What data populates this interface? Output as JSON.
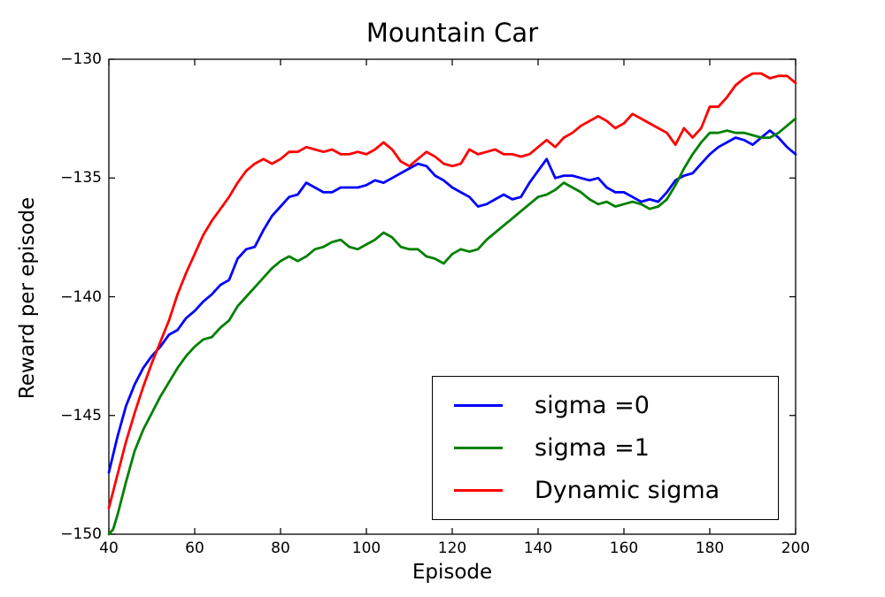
{
  "chart_data": {
    "type": "line",
    "title": "Mountain Car",
    "xlabel": "Episode",
    "ylabel": "Reward per episode",
    "xlim": [
      40,
      200
    ],
    "ylim": [
      -150,
      -130
    ],
    "xticks": [
      40,
      60,
      80,
      100,
      120,
      140,
      160,
      180,
      200
    ],
    "xtick_labels": [
      "40",
      "60",
      "80",
      "100",
      "120",
      "140",
      "160",
      "180",
      "200"
    ],
    "yticks": [
      -130,
      -135,
      -140,
      -145,
      -150
    ],
    "ytick_labels": [
      "−130",
      "−135",
      "−140",
      "−145",
      "−150"
    ],
    "grid": false,
    "legend_position": "lower-right-inside",
    "axis_color": "#000000",
    "background_color": "#ffffff",
    "series": [
      {
        "name": "sigma =0",
        "color": "#0000ff",
        "points": [
          [
            40,
            -147.4
          ],
          [
            42,
            -145.9
          ],
          [
            44,
            -144.6
          ],
          [
            46,
            -143.7
          ],
          [
            48,
            -143.0
          ],
          [
            50,
            -142.5
          ],
          [
            52,
            -142.1
          ],
          [
            54,
            -141.6
          ],
          [
            56,
            -141.4
          ],
          [
            58,
            -140.9
          ],
          [
            60,
            -140.6
          ],
          [
            62,
            -140.2
          ],
          [
            64,
            -139.9
          ],
          [
            66,
            -139.5
          ],
          [
            68,
            -139.3
          ],
          [
            70,
            -138.4
          ],
          [
            72,
            -138.0
          ],
          [
            74,
            -137.9
          ],
          [
            76,
            -137.2
          ],
          [
            78,
            -136.6
          ],
          [
            80,
            -136.2
          ],
          [
            82,
            -135.8
          ],
          [
            84,
            -135.7
          ],
          [
            86,
            -135.2
          ],
          [
            88,
            -135.4
          ],
          [
            90,
            -135.6
          ],
          [
            92,
            -135.6
          ],
          [
            94,
            -135.4
          ],
          [
            96,
            -135.4
          ],
          [
            98,
            -135.4
          ],
          [
            100,
            -135.3
          ],
          [
            102,
            -135.1
          ],
          [
            104,
            -135.2
          ],
          [
            106,
            -135.0
          ],
          [
            108,
            -134.8
          ],
          [
            110,
            -134.6
          ],
          [
            112,
            -134.4
          ],
          [
            114,
            -134.5
          ],
          [
            116,
            -134.9
          ],
          [
            118,
            -135.1
          ],
          [
            120,
            -135.4
          ],
          [
            122,
            -135.6
          ],
          [
            124,
            -135.8
          ],
          [
            126,
            -136.2
          ],
          [
            128,
            -136.1
          ],
          [
            130,
            -135.9
          ],
          [
            132,
            -135.7
          ],
          [
            134,
            -135.9
          ],
          [
            136,
            -135.8
          ],
          [
            138,
            -135.2
          ],
          [
            140,
            -134.7
          ],
          [
            142,
            -134.2
          ],
          [
            144,
            -135.0
          ],
          [
            146,
            -134.9
          ],
          [
            148,
            -134.9
          ],
          [
            150,
            -135.0
          ],
          [
            152,
            -135.1
          ],
          [
            154,
            -135.0
          ],
          [
            156,
            -135.4
          ],
          [
            158,
            -135.6
          ],
          [
            160,
            -135.6
          ],
          [
            162,
            -135.8
          ],
          [
            164,
            -136.0
          ],
          [
            166,
            -135.9
          ],
          [
            168,
            -136.0
          ],
          [
            170,
            -135.6
          ],
          [
            172,
            -135.1
          ],
          [
            174,
            -134.9
          ],
          [
            176,
            -134.8
          ],
          [
            178,
            -134.4
          ],
          [
            180,
            -134.0
          ],
          [
            182,
            -133.7
          ],
          [
            184,
            -133.5
          ],
          [
            186,
            -133.3
          ],
          [
            188,
            -133.4
          ],
          [
            190,
            -133.6
          ],
          [
            192,
            -133.3
          ],
          [
            194,
            -133.0
          ],
          [
            196,
            -133.3
          ],
          [
            198,
            -133.7
          ],
          [
            200,
            -134.0
          ]
        ]
      },
      {
        "name": "sigma =1",
        "color": "#008000",
        "points": [
          [
            40,
            -150.0
          ],
          [
            41,
            -149.8
          ],
          [
            42,
            -149.2
          ],
          [
            44,
            -147.8
          ],
          [
            46,
            -146.5
          ],
          [
            48,
            -145.6
          ],
          [
            50,
            -144.9
          ],
          [
            52,
            -144.2
          ],
          [
            54,
            -143.6
          ],
          [
            56,
            -143.0
          ],
          [
            58,
            -142.5
          ],
          [
            60,
            -142.1
          ],
          [
            62,
            -141.8
          ],
          [
            64,
            -141.7
          ],
          [
            66,
            -141.3
          ],
          [
            68,
            -141.0
          ],
          [
            70,
            -140.4
          ],
          [
            72,
            -140.0
          ],
          [
            74,
            -139.6
          ],
          [
            76,
            -139.2
          ],
          [
            78,
            -138.8
          ],
          [
            80,
            -138.5
          ],
          [
            82,
            -138.3
          ],
          [
            84,
            -138.5
          ],
          [
            86,
            -138.3
          ],
          [
            88,
            -138.0
          ],
          [
            90,
            -137.9
          ],
          [
            92,
            -137.7
          ],
          [
            94,
            -137.6
          ],
          [
            96,
            -137.9
          ],
          [
            98,
            -138.0
          ],
          [
            100,
            -137.8
          ],
          [
            102,
            -137.6
          ],
          [
            104,
            -137.3
          ],
          [
            106,
            -137.5
          ],
          [
            108,
            -137.9
          ],
          [
            110,
            -138.0
          ],
          [
            112,
            -138.0
          ],
          [
            114,
            -138.3
          ],
          [
            116,
            -138.4
          ],
          [
            118,
            -138.6
          ],
          [
            120,
            -138.2
          ],
          [
            122,
            -138.0
          ],
          [
            124,
            -138.1
          ],
          [
            126,
            -138.0
          ],
          [
            128,
            -137.6
          ],
          [
            130,
            -137.3
          ],
          [
            132,
            -137.0
          ],
          [
            134,
            -136.7
          ],
          [
            136,
            -136.4
          ],
          [
            138,
            -136.1
          ],
          [
            140,
            -135.8
          ],
          [
            142,
            -135.7
          ],
          [
            144,
            -135.5
          ],
          [
            146,
            -135.2
          ],
          [
            148,
            -135.4
          ],
          [
            150,
            -135.6
          ],
          [
            152,
            -135.9
          ],
          [
            154,
            -136.1
          ],
          [
            156,
            -136.0
          ],
          [
            158,
            -136.2
          ],
          [
            160,
            -136.1
          ],
          [
            162,
            -136.0
          ],
          [
            164,
            -136.1
          ],
          [
            166,
            -136.3
          ],
          [
            168,
            -136.2
          ],
          [
            170,
            -135.9
          ],
          [
            172,
            -135.3
          ],
          [
            174,
            -134.6
          ],
          [
            176,
            -134.0
          ],
          [
            178,
            -133.5
          ],
          [
            180,
            -133.1
          ],
          [
            182,
            -133.1
          ],
          [
            184,
            -133.0
          ],
          [
            186,
            -133.1
          ],
          [
            188,
            -133.1
          ],
          [
            190,
            -133.2
          ],
          [
            192,
            -133.3
          ],
          [
            194,
            -133.3
          ],
          [
            196,
            -133.1
          ],
          [
            198,
            -132.8
          ],
          [
            200,
            -132.5
          ]
        ]
      },
      {
        "name": "Dynamic sigma",
        "color": "#ff0000",
        "points": [
          [
            40,
            -148.9
          ],
          [
            42,
            -147.5
          ],
          [
            44,
            -146.1
          ],
          [
            46,
            -144.9
          ],
          [
            48,
            -143.8
          ],
          [
            50,
            -142.8
          ],
          [
            52,
            -141.9
          ],
          [
            54,
            -141.0
          ],
          [
            56,
            -139.9
          ],
          [
            58,
            -139.0
          ],
          [
            60,
            -138.2
          ],
          [
            62,
            -137.4
          ],
          [
            64,
            -136.8
          ],
          [
            66,
            -136.3
          ],
          [
            68,
            -135.8
          ],
          [
            70,
            -135.2
          ],
          [
            72,
            -134.7
          ],
          [
            74,
            -134.4
          ],
          [
            76,
            -134.2
          ],
          [
            78,
            -134.4
          ],
          [
            80,
            -134.2
          ],
          [
            82,
            -133.9
          ],
          [
            84,
            -133.9
          ],
          [
            86,
            -133.7
          ],
          [
            88,
            -133.8
          ],
          [
            90,
            -133.9
          ],
          [
            92,
            -133.8
          ],
          [
            94,
            -134.0
          ],
          [
            96,
            -134.0
          ],
          [
            98,
            -133.9
          ],
          [
            100,
            -134.0
          ],
          [
            102,
            -133.8
          ],
          [
            104,
            -133.5
          ],
          [
            106,
            -133.8
          ],
          [
            108,
            -134.3
          ],
          [
            110,
            -134.5
          ],
          [
            112,
            -134.2
          ],
          [
            114,
            -133.9
          ],
          [
            116,
            -134.1
          ],
          [
            118,
            -134.4
          ],
          [
            120,
            -134.5
          ],
          [
            122,
            -134.4
          ],
          [
            124,
            -133.8
          ],
          [
            126,
            -134.0
          ],
          [
            128,
            -133.9
          ],
          [
            130,
            -133.8
          ],
          [
            132,
            -134.0
          ],
          [
            134,
            -134.0
          ],
          [
            136,
            -134.1
          ],
          [
            138,
            -134.0
          ],
          [
            140,
            -133.7
          ],
          [
            142,
            -133.4
          ],
          [
            144,
            -133.7
          ],
          [
            146,
            -133.3
          ],
          [
            148,
            -133.1
          ],
          [
            150,
            -132.8
          ],
          [
            152,
            -132.6
          ],
          [
            154,
            -132.4
          ],
          [
            156,
            -132.6
          ],
          [
            158,
            -132.9
          ],
          [
            160,
            -132.7
          ],
          [
            162,
            -132.3
          ],
          [
            164,
            -132.5
          ],
          [
            166,
            -132.7
          ],
          [
            168,
            -132.9
          ],
          [
            170,
            -133.1
          ],
          [
            172,
            -133.6
          ],
          [
            174,
            -132.9
          ],
          [
            176,
            -133.3
          ],
          [
            178,
            -132.9
          ],
          [
            180,
            -132.0
          ],
          [
            182,
            -132.0
          ],
          [
            184,
            -131.6
          ],
          [
            186,
            -131.1
          ],
          [
            188,
            -130.8
          ],
          [
            190,
            -130.6
          ],
          [
            192,
            -130.6
          ],
          [
            194,
            -130.8
          ],
          [
            196,
            -130.7
          ],
          [
            198,
            -130.7
          ],
          [
            200,
            -131.0
          ]
        ]
      }
    ]
  }
}
